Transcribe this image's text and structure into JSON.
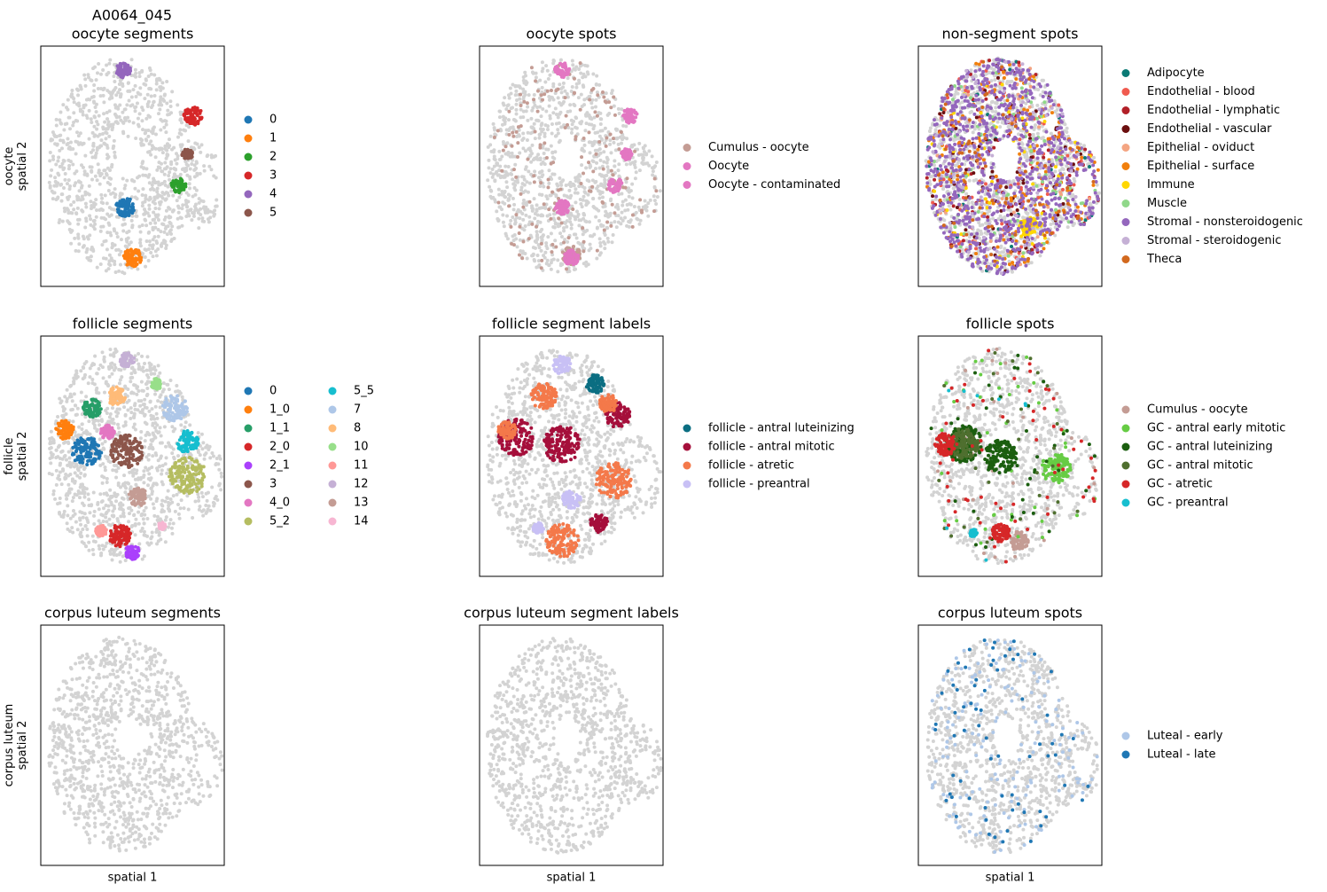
{
  "title": "A0064_045",
  "chart_data": [
    {
      "type": "scatter",
      "title": "oocyte segments",
      "ylabel": [
        "oocyte",
        "spatial 2"
      ],
      "series": [
        {
          "name": "0",
          "color": "#1f77b4"
        },
        {
          "name": "1",
          "color": "#ff7f0e"
        },
        {
          "name": "2",
          "color": "#2ca02c"
        },
        {
          "name": "3",
          "color": "#d62728"
        },
        {
          "name": "4",
          "color": "#9467bd"
        },
        {
          "name": "5",
          "color": "#8c564b"
        }
      ]
    },
    {
      "type": "scatter",
      "title": "oocyte spots",
      "series": [
        {
          "name": "Cumulus - oocyte",
          "color": "#c49c94"
        },
        {
          "name": "Oocyte",
          "color": "#e377c2"
        },
        {
          "name": "Oocyte - contaminated",
          "color": "#e377c2"
        }
      ]
    },
    {
      "type": "scatter",
      "title": "non-segment spots",
      "series": [
        {
          "name": "Adipocyte",
          "color": "#0b7a75"
        },
        {
          "name": "Endothelial - blood",
          "color": "#f05b4f"
        },
        {
          "name": "Endothelial - lymphatic",
          "color": "#b22028"
        },
        {
          "name": "Endothelial - vascular",
          "color": "#6b0f0f"
        },
        {
          "name": "Epithelial - oviduct",
          "color": "#f4a582"
        },
        {
          "name": "Epithelial - surface",
          "color": "#f17f0c"
        },
        {
          "name": "Immune",
          "color": "#ffd700"
        },
        {
          "name": "Muscle",
          "color": "#90d88a"
        },
        {
          "name": "Stromal - nonsteroidogenic",
          "color": "#9467bd"
        },
        {
          "name": "Stromal - steroidogenic",
          "color": "#c5b0d5"
        },
        {
          "name": "Theca",
          "color": "#d2691e"
        }
      ]
    },
    {
      "type": "scatter",
      "title": "follicle segments",
      "ylabel": [
        "follicle",
        "spatial 2"
      ],
      "legend_columns": 2,
      "series": [
        {
          "name": "0",
          "color": "#1f77b4"
        },
        {
          "name": "1_0",
          "color": "#ff7f0e"
        },
        {
          "name": "1_1",
          "color": "#279e68"
        },
        {
          "name": "2_0",
          "color": "#d62728"
        },
        {
          "name": "2_1",
          "color": "#aa40fc"
        },
        {
          "name": "3",
          "color": "#8c564b"
        },
        {
          "name": "4_0",
          "color": "#e377c2"
        },
        {
          "name": "5_2",
          "color": "#b5bd61"
        },
        {
          "name": "5_5",
          "color": "#17becf"
        },
        {
          "name": "7",
          "color": "#aec7e8"
        },
        {
          "name": "8",
          "color": "#ffbb78"
        },
        {
          "name": "10",
          "color": "#98df8a"
        },
        {
          "name": "11",
          "color": "#ff9896"
        },
        {
          "name": "12",
          "color": "#c5b0d5"
        },
        {
          "name": "13",
          "color": "#c49c94"
        },
        {
          "name": "14",
          "color": "#f7b6d2"
        }
      ]
    },
    {
      "type": "scatter",
      "title": "follicle segment labels",
      "series": [
        {
          "name": "follicle - antral luteinizing",
          "color": "#0b6e82"
        },
        {
          "name": "follicle - antral mitotic",
          "color": "#a50f3b"
        },
        {
          "name": "follicle - atretic",
          "color": "#f4794a"
        },
        {
          "name": "follicle - preantral",
          "color": "#c8c0f5"
        }
      ]
    },
    {
      "type": "scatter",
      "title": "follicle spots",
      "series": [
        {
          "name": "Cumulus - oocyte",
          "color": "#c49c94"
        },
        {
          "name": "GC - antral early mitotic",
          "color": "#66cc44"
        },
        {
          "name": "GC - antral luteinizing",
          "color": "#1b5e0f"
        },
        {
          "name": "GC - antral mitotic",
          "color": "#4f6f2f"
        },
        {
          "name": "GC - atretic",
          "color": "#d62728"
        },
        {
          "name": "GC - preantral",
          "color": "#17becf"
        }
      ]
    },
    {
      "type": "scatter",
      "title": "corpus luteum segments",
      "ylabel": [
        "corpus luteum",
        "spatial 2"
      ],
      "xlabel": "spatial 1"
    },
    {
      "type": "scatter",
      "title": "corpus luteum segment labels",
      "xlabel": "spatial 1"
    },
    {
      "type": "scatter",
      "title": "corpus luteum spots",
      "xlabel": "spatial 1",
      "series": [
        {
          "name": "Luteal - early",
          "color": "#aec7e8"
        },
        {
          "name": "Luteal - late",
          "color": "#1f77b4"
        }
      ]
    }
  ]
}
